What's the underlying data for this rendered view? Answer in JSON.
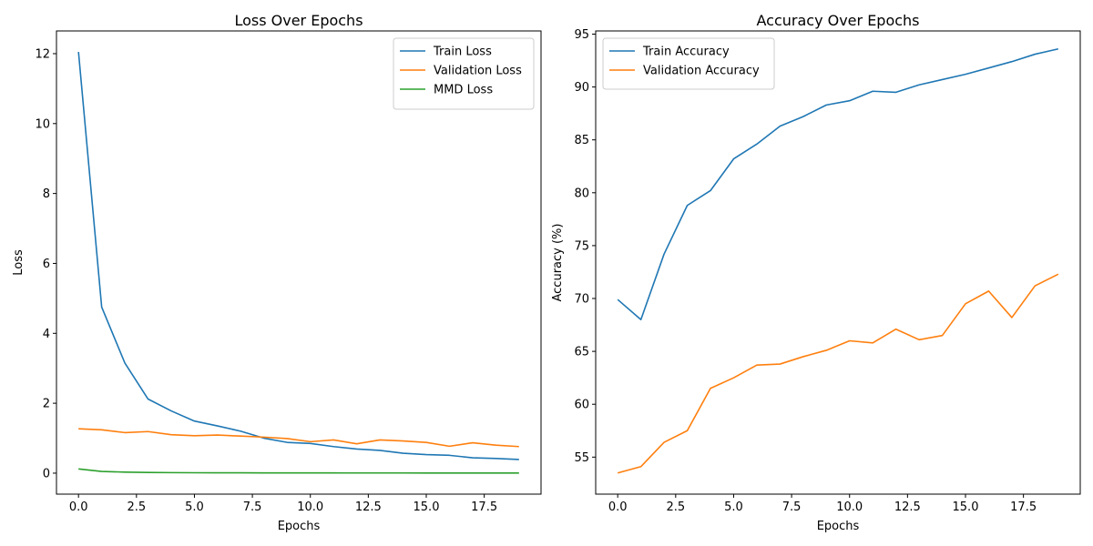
{
  "chart_data": [
    {
      "type": "line",
      "title": "Loss Over Epochs",
      "xlabel": "Epochs",
      "ylabel": "Loss",
      "xlim": [
        -0.95,
        19.95
      ],
      "ylim": [
        -0.6,
        12.65
      ],
      "xticks": [
        0,
        2.5,
        5,
        7.5,
        10,
        12.5,
        15,
        17.5
      ],
      "xtick_labels": [
        "0.0",
        "2.5",
        "5.0",
        "7.5",
        "10.0",
        "12.5",
        "15.0",
        "17.5"
      ],
      "yticks": [
        0,
        2,
        4,
        6,
        8,
        10,
        12
      ],
      "ytick_labels": [
        "0",
        "2",
        "4",
        "6",
        "8",
        "10",
        "12"
      ],
      "grid": false,
      "legend": "top-right",
      "x": [
        0,
        1,
        2,
        3,
        4,
        5,
        6,
        7,
        8,
        9,
        10,
        11,
        12,
        13,
        14,
        15,
        16,
        17,
        18,
        19
      ],
      "series": [
        {
          "name": "Train Loss",
          "color": "#1f77b4",
          "values": [
            12.05,
            4.75,
            3.15,
            2.12,
            1.78,
            1.49,
            1.35,
            1.2,
            1.0,
            0.88,
            0.85,
            0.76,
            0.69,
            0.65,
            0.57,
            0.53,
            0.51,
            0.44,
            0.42,
            0.39
          ]
        },
        {
          "name": "Validation Loss",
          "color": "#ff7f0e",
          "values": [
            1.27,
            1.24,
            1.16,
            1.19,
            1.1,
            1.07,
            1.09,
            1.06,
            1.03,
            0.99,
            0.9,
            0.95,
            0.84,
            0.95,
            0.92,
            0.88,
            0.77,
            0.87,
            0.8,
            0.76
          ]
        },
        {
          "name": "MMD Loss",
          "color": "#2ca02c",
          "values": [
            0.12,
            0.05,
            0.03,
            0.02,
            0.015,
            0.012,
            0.01,
            0.009,
            0.008,
            0.007,
            0.006,
            0.006,
            0.005,
            0.005,
            0.005,
            0.004,
            0.004,
            0.004,
            0.004,
            0.004
          ]
        }
      ]
    },
    {
      "type": "line",
      "title": "Accuracy Over Epochs",
      "xlabel": "Epochs",
      "ylabel": "Accuracy (%)",
      "xlim": [
        -0.95,
        19.95
      ],
      "ylim": [
        51.5,
        95.3
      ],
      "xticks": [
        0,
        2.5,
        5,
        7.5,
        10,
        12.5,
        15,
        17.5
      ],
      "xtick_labels": [
        "0.0",
        "2.5",
        "5.0",
        "7.5",
        "10.0",
        "12.5",
        "15.0",
        "17.5"
      ],
      "yticks": [
        55,
        60,
        65,
        70,
        75,
        80,
        85,
        90,
        95
      ],
      "ytick_labels": [
        "55",
        "60",
        "65",
        "70",
        "75",
        "80",
        "85",
        "90",
        "95"
      ],
      "grid": false,
      "legend": "top-left",
      "x": [
        0,
        1,
        2,
        3,
        4,
        5,
        6,
        7,
        8,
        9,
        10,
        11,
        12,
        13,
        14,
        15,
        16,
        17,
        18,
        19
      ],
      "series": [
        {
          "name": "Train Accuracy",
          "color": "#1f77b4",
          "values": [
            69.9,
            68.0,
            74.2,
            78.8,
            80.2,
            83.2,
            84.6,
            86.3,
            87.2,
            88.3,
            88.7,
            89.6,
            89.5,
            90.2,
            90.7,
            91.2,
            91.8,
            92.4,
            93.1,
            93.6
          ]
        },
        {
          "name": "Validation Accuracy",
          "color": "#ff7f0e",
          "values": [
            53.5,
            54.1,
            56.4,
            57.5,
            61.5,
            62.5,
            63.7,
            63.8,
            64.5,
            65.1,
            66.0,
            65.8,
            67.1,
            66.1,
            66.5,
            69.5,
            70.7,
            68.2,
            71.2,
            72.3
          ]
        }
      ]
    }
  ]
}
